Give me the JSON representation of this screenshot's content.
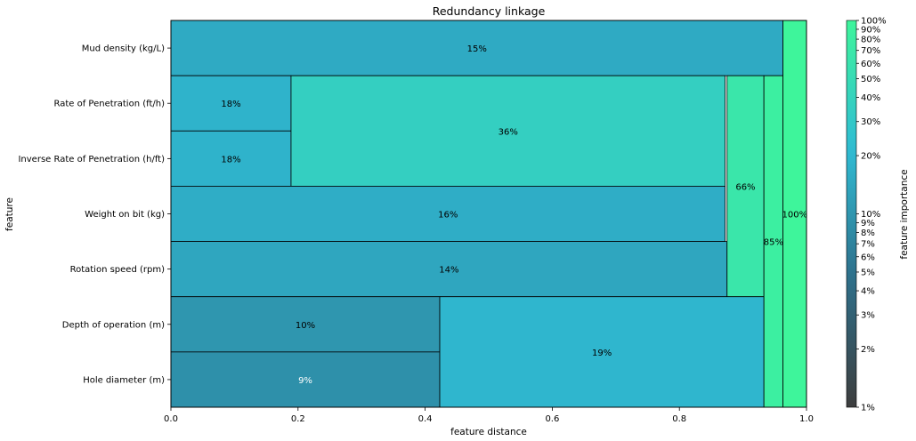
{
  "chart_data": {
    "type": "icicle",
    "title": "Redundancy linkage",
    "xlabel": "feature distance",
    "ylabel": "feature",
    "xlim": [
      0,
      1
    ],
    "xticks": [
      "0.0",
      "0.2",
      "0.4",
      "0.6",
      "0.8",
      "1.0"
    ],
    "features": [
      "Mud density (kg/L)",
      "Rate of Penetration (ft/h)",
      "Inverse Rate of Penetration (h/ft)",
      "Weight on bit (kg)",
      "Rotation speed (rpm)",
      "Depth of operation (m)",
      "Hole diameter (m)"
    ],
    "nodes": [
      {
        "label": "15%",
        "importance": 0.15,
        "x0": 0.0,
        "x1": 0.963,
        "rows": [
          0,
          0
        ]
      },
      {
        "label": "18%",
        "importance": 0.18,
        "x0": 0.0,
        "x1": 0.189,
        "rows": [
          1,
          1
        ]
      },
      {
        "label": "18%",
        "importance": 0.18,
        "x0": 0.0,
        "x1": 0.189,
        "rows": [
          2,
          2
        ]
      },
      {
        "label": "36%",
        "importance": 0.36,
        "x0": 0.189,
        "x1": 0.872,
        "rows": [
          1,
          2
        ]
      },
      {
        "label": "16%",
        "importance": 0.16,
        "x0": 0.0,
        "x1": 0.872,
        "rows": [
          3,
          3
        ]
      },
      {
        "label": "14%",
        "importance": 0.14,
        "x0": 0.0,
        "x1": 0.875,
        "rows": [
          4,
          4
        ]
      },
      {
        "label": "66%",
        "importance": 0.66,
        "x0": 0.875,
        "x1": 0.933,
        "rows": [
          1,
          4
        ]
      },
      {
        "label": "10%",
        "importance": 0.1,
        "x0": 0.0,
        "x1": 0.423,
        "rows": [
          5,
          5
        ]
      },
      {
        "label": "9%",
        "importance": 0.09,
        "x0": 0.0,
        "x1": 0.423,
        "rows": [
          6,
          6
        ]
      },
      {
        "label": "19%",
        "importance": 0.19,
        "x0": 0.423,
        "x1": 0.933,
        "rows": [
          5,
          6
        ]
      },
      {
        "label": "85%",
        "importance": 0.85,
        "x0": 0.933,
        "x1": 0.963,
        "rows": [
          1,
          6
        ]
      },
      {
        "label": "100%",
        "importance": 1.0,
        "x0": 0.963,
        "x1": 1.0,
        "rows": [
          0,
          6
        ]
      }
    ],
    "colorbar": {
      "label": "feature importance",
      "scale": "log",
      "range": [
        0.01,
        1.0
      ],
      "ticks": [
        {
          "value": 0.01,
          "label": "1%"
        },
        {
          "value": 0.02,
          "label": "2%"
        },
        {
          "value": 0.03,
          "label": "3%"
        },
        {
          "value": 0.04,
          "label": "4%"
        },
        {
          "value": 0.05,
          "label": "5%"
        },
        {
          "value": 0.06,
          "label": "6%"
        },
        {
          "value": 0.07,
          "label": "7%"
        },
        {
          "value": 0.08,
          "label": "8%"
        },
        {
          "value": 0.09,
          "label": "9%"
        },
        {
          "value": 0.1,
          "label": "10%"
        },
        {
          "value": 0.2,
          "label": "20%"
        },
        {
          "value": 0.3,
          "label": "30%"
        },
        {
          "value": 0.4,
          "label": "40%"
        },
        {
          "value": 0.5,
          "label": "50%"
        },
        {
          "value": 0.6,
          "label": "60%"
        },
        {
          "value": 0.7,
          "label": "70%"
        },
        {
          "value": 0.8,
          "label": "80%"
        },
        {
          "value": 0.9,
          "label": "90%"
        },
        {
          "value": 1.0,
          "label": "100%"
        }
      ],
      "colors": [
        "#3d3d3d",
        "#2e6f8a",
        "#2fbcd4",
        "#3ef59b"
      ]
    }
  }
}
